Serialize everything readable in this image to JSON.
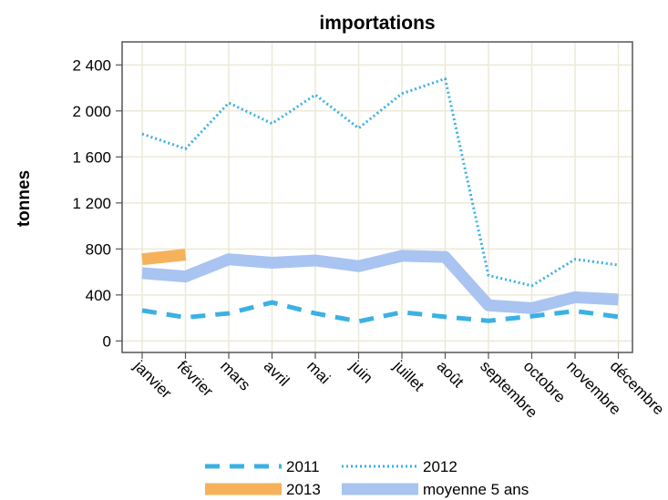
{
  "chart_data": {
    "type": "line",
    "title": "importations",
    "xlabel": "",
    "ylabel": "tonnes",
    "categories": [
      "janvier",
      "février",
      "mars",
      "avril",
      "mai",
      "juin",
      "juillet",
      "août",
      "septembre",
      "octobre",
      "novembre",
      "décembre"
    ],
    "ylim": [
      -100,
      2600
    ],
    "yticks": [
      0,
      400,
      800,
      1200,
      1600,
      2000,
      2400
    ],
    "ytick_labels": [
      "0",
      "400",
      "800",
      "1 200",
      "1 600",
      "2 000",
      "2 400"
    ],
    "grid": true,
    "legend_position": "bottom",
    "series": [
      {
        "name": "2011",
        "style": "dashed",
        "color": "#3bb1e3",
        "values": [
          265,
          205,
          240,
          335,
          240,
          170,
          250,
          210,
          175,
          215,
          260,
          210
        ]
      },
      {
        "name": "2012",
        "style": "dotted",
        "color": "#3bb1e3",
        "values": [
          1800,
          1670,
          2070,
          1890,
          2140,
          1850,
          2150,
          2280,
          570,
          480,
          710,
          660
        ]
      },
      {
        "name": "2013",
        "style": "thick",
        "color": "#f5b25a",
        "values": [
          710,
          750,
          null,
          null,
          null,
          null,
          null,
          null,
          null,
          null,
          null,
          null
        ]
      },
      {
        "name": "moyenne 5 ans",
        "style": "thick",
        "color": "#a9c4f0",
        "values": [
          590,
          560,
          710,
          680,
          700,
          650,
          740,
          730,
          310,
          285,
          380,
          360
        ]
      }
    ]
  },
  "colors": {
    "grid": "#ece9d6",
    "frame": "#555555"
  }
}
